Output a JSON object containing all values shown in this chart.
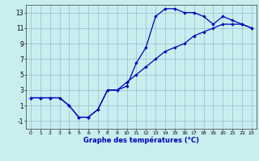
{
  "bg_color": "#c8eef0",
  "line_color": "#0000bb",
  "grid_color": "#99bbcc",
  "xlim": [
    -0.5,
    23.5
  ],
  "ylim": [
    -2,
    14
  ],
  "xticks": [
    0,
    1,
    2,
    3,
    4,
    5,
    6,
    7,
    8,
    9,
    10,
    11,
    12,
    13,
    14,
    15,
    16,
    17,
    18,
    19,
    20,
    21,
    22,
    23
  ],
  "yticks": [
    -1,
    1,
    3,
    5,
    7,
    9,
    11,
    13
  ],
  "xlabel": "Graphe des températures (°C)",
  "curve1_x": [
    0,
    1,
    2,
    3,
    4,
    5,
    6,
    7,
    8,
    9,
    10,
    11,
    12,
    13,
    14,
    15,
    16,
    17,
    18,
    19,
    20,
    21,
    22,
    23
  ],
  "curve1_y": [
    2.0,
    2.0,
    2.0,
    2.0,
    1.0,
    -0.5,
    -0.5,
    0.5,
    3.0,
    3.0,
    3.5,
    6.5,
    8.5,
    12.5,
    13.5,
    13.5,
    13.0,
    13.0,
    12.5,
    11.5,
    12.5,
    12.0,
    11.5,
    11.0
  ],
  "curve2_x": [
    0,
    1,
    2,
    3,
    4,
    5,
    6,
    7,
    8,
    9,
    10,
    11,
    12,
    13,
    14,
    15,
    16,
    17,
    18,
    19,
    20,
    21,
    22,
    23
  ],
  "curve2_y": [
    2.0,
    2.0,
    2.0,
    2.0,
    1.0,
    -0.5,
    -0.5,
    0.5,
    3.0,
    3.0,
    4.0,
    5.0,
    6.0,
    7.0,
    8.0,
    8.5,
    9.0,
    10.0,
    10.5,
    11.0,
    11.5,
    11.5,
    11.5,
    11.0
  ]
}
